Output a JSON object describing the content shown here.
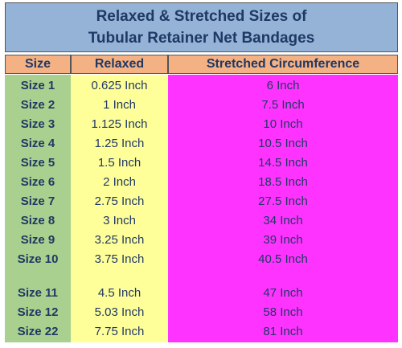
{
  "title": {
    "line1": "Relaxed & Stretched Sizes of",
    "line2": "Tubular Retainer Net Bandages"
  },
  "headers": {
    "size": "Size",
    "relaxed": "Relaxed",
    "stretched": "Stretched Circumference"
  },
  "colors": {
    "title_bg": "#95b3d7",
    "header_bg": "#f4b183",
    "size_col": "#a9d08e",
    "relaxed_col": "#ffff99",
    "stretched_col": "#ff33ff"
  },
  "rows": [
    {
      "size": "Size 1",
      "relaxed": "0.625 Inch",
      "stretched": "6 Inch"
    },
    {
      "size": "Size 2",
      "relaxed": "1 Inch",
      "stretched": "7.5 Inch"
    },
    {
      "size": "Size 3",
      "relaxed": "1.125 Inch",
      "stretched": "10 Inch"
    },
    {
      "size": "Size 4",
      "relaxed": "1.25 Inch",
      "stretched": "10.5 Inch"
    },
    {
      "size": "Size 5",
      "relaxed": "1.5 Inch",
      "stretched": "14.5 Inch"
    },
    {
      "size": "Size 6",
      "relaxed": "2 Inch",
      "stretched": "18.5 Inch"
    },
    {
      "size": "Size 7",
      "relaxed": "2.75 Inch",
      "stretched": "27.5 Inch"
    },
    {
      "size": "Size 8",
      "relaxed": "3 Inch",
      "stretched": "34 Inch"
    },
    {
      "size": "Size 9",
      "relaxed": "3.25 Inch",
      "stretched": "39 Inch"
    },
    {
      "size": "Size 10",
      "relaxed": "3.75 Inch",
      "stretched": "40.5 Inch"
    },
    {
      "size": "Size 11",
      "relaxed": "4.5 Inch",
      "stretched": "47 Inch"
    },
    {
      "size": "Size 12",
      "relaxed": "5.03 Inch",
      "stretched": "58 Inch"
    },
    {
      "size": "Size 22",
      "relaxed": "7.75 Inch",
      "stretched": "81 Inch"
    }
  ]
}
